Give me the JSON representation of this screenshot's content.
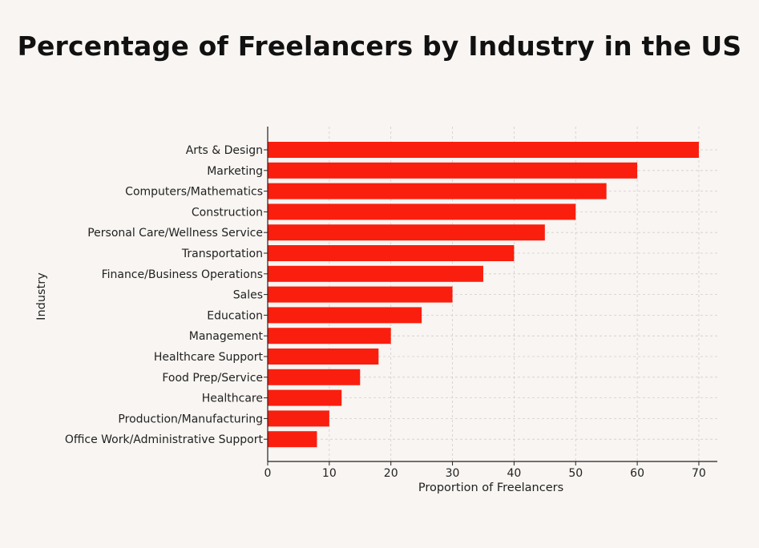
{
  "chart_data": {
    "type": "bar",
    "orientation": "horizontal",
    "title": "Percentage of Freelancers by Industry in the US",
    "xlabel": "Proportion of Freelancers",
    "ylabel": "Industry",
    "categories": [
      "Arts & Design",
      "Marketing",
      "Computers/Mathematics",
      "Construction",
      "Personal Care/Wellness Service",
      "Transportation",
      "Finance/Business Operations",
      "Sales",
      "Education",
      "Management",
      "Healthcare Support",
      "Food Prep/Service",
      "Healthcare",
      "Production/Manufacturing",
      "Office Work/Administrative Support"
    ],
    "values": [
      70,
      60,
      55,
      50,
      45,
      40,
      35,
      30,
      25,
      20,
      18,
      15,
      12,
      10,
      8
    ],
    "xlim": [
      0,
      73
    ],
    "xticks": [
      0,
      10,
      20,
      30,
      40,
      50,
      60,
      70
    ],
    "grid": true,
    "bar_color": "#fa1e0e"
  }
}
